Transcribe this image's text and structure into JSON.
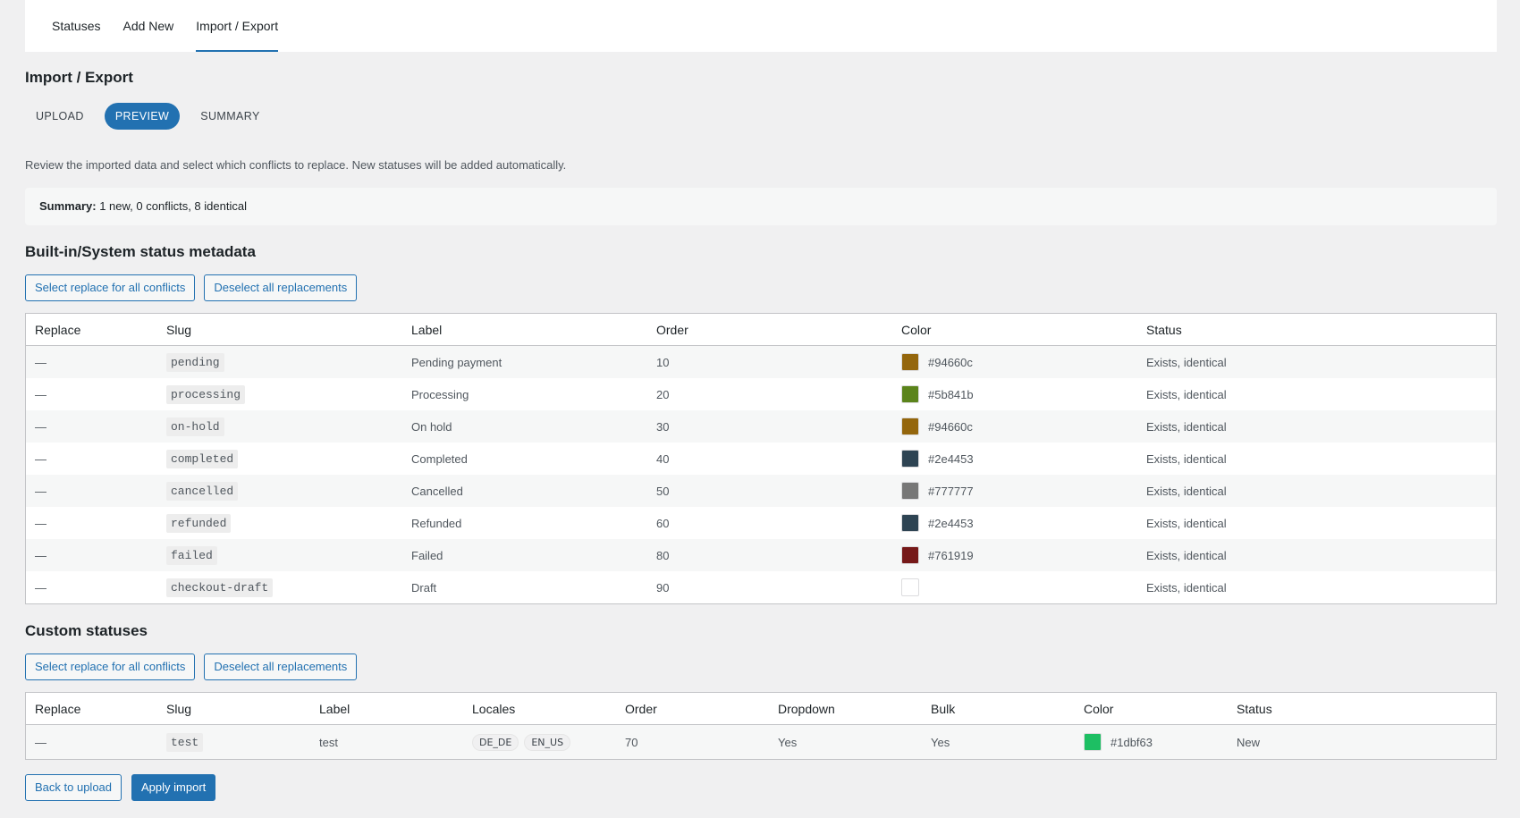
{
  "nav": {
    "tabs": [
      {
        "label": "Statuses",
        "active": false
      },
      {
        "label": "Add New",
        "active": false
      },
      {
        "label": "Import / Export",
        "active": true
      }
    ]
  },
  "page": {
    "title": "Import / Export",
    "steps": [
      "UPLOAD",
      "PREVIEW",
      "SUMMARY"
    ],
    "active_step": "PREVIEW",
    "intro": "Review the imported data and select which conflicts to replace. New statuses will be added automatically.",
    "summary_label": "Summary:",
    "summary_text": "1 new, 0 conflicts, 8 identical"
  },
  "builtin": {
    "heading": "Built-in/System status metadata",
    "select_all_label": "Select replace for all conflicts",
    "deselect_all_label": "Deselect all replacements",
    "columns": [
      "Replace",
      "Slug",
      "Label",
      "Order",
      "Color",
      "Status"
    ],
    "rows": [
      {
        "replace": "—",
        "slug": "pending",
        "label": "Pending payment",
        "order": "10",
        "color": "#94660c",
        "color_label": "#94660c",
        "status": "Exists, identical"
      },
      {
        "replace": "—",
        "slug": "processing",
        "label": "Processing",
        "order": "20",
        "color": "#5b841b",
        "color_label": "#5b841b",
        "status": "Exists, identical"
      },
      {
        "replace": "—",
        "slug": "on-hold",
        "label": "On hold",
        "order": "30",
        "color": "#94660c",
        "color_label": "#94660c",
        "status": "Exists, identical"
      },
      {
        "replace": "—",
        "slug": "completed",
        "label": "Completed",
        "order": "40",
        "color": "#2e4453",
        "color_label": "#2e4453",
        "status": "Exists, identical"
      },
      {
        "replace": "—",
        "slug": "cancelled",
        "label": "Cancelled",
        "order": "50",
        "color": "#777777",
        "color_label": "#777777",
        "status": "Exists, identical"
      },
      {
        "replace": "—",
        "slug": "refunded",
        "label": "Refunded",
        "order": "60",
        "color": "#2e4453",
        "color_label": "#2e4453",
        "status": "Exists, identical"
      },
      {
        "replace": "—",
        "slug": "failed",
        "label": "Failed",
        "order": "80",
        "color": "#761919",
        "color_label": "#761919",
        "status": "Exists, identical"
      },
      {
        "replace": "—",
        "slug": "checkout-draft",
        "label": "Draft",
        "order": "90",
        "color": "#ffffff",
        "color_label": "",
        "status": "Exists, identical"
      }
    ]
  },
  "custom": {
    "heading": "Custom statuses",
    "select_all_label": "Select replace for all conflicts",
    "deselect_all_label": "Deselect all replacements",
    "columns": [
      "Replace",
      "Slug",
      "Label",
      "Locales",
      "Order",
      "Dropdown",
      "Bulk",
      "Color",
      "Status"
    ],
    "rows": [
      {
        "replace": "—",
        "slug": "test",
        "label": "test",
        "locales": [
          "DE_DE",
          "EN_US"
        ],
        "order": "70",
        "dropdown": "Yes",
        "bulk": "Yes",
        "color": "#1dbf63",
        "color_label": "#1dbf63",
        "status": "New"
      }
    ]
  },
  "footer": {
    "back_label": "Back to upload",
    "apply_label": "Apply import"
  }
}
